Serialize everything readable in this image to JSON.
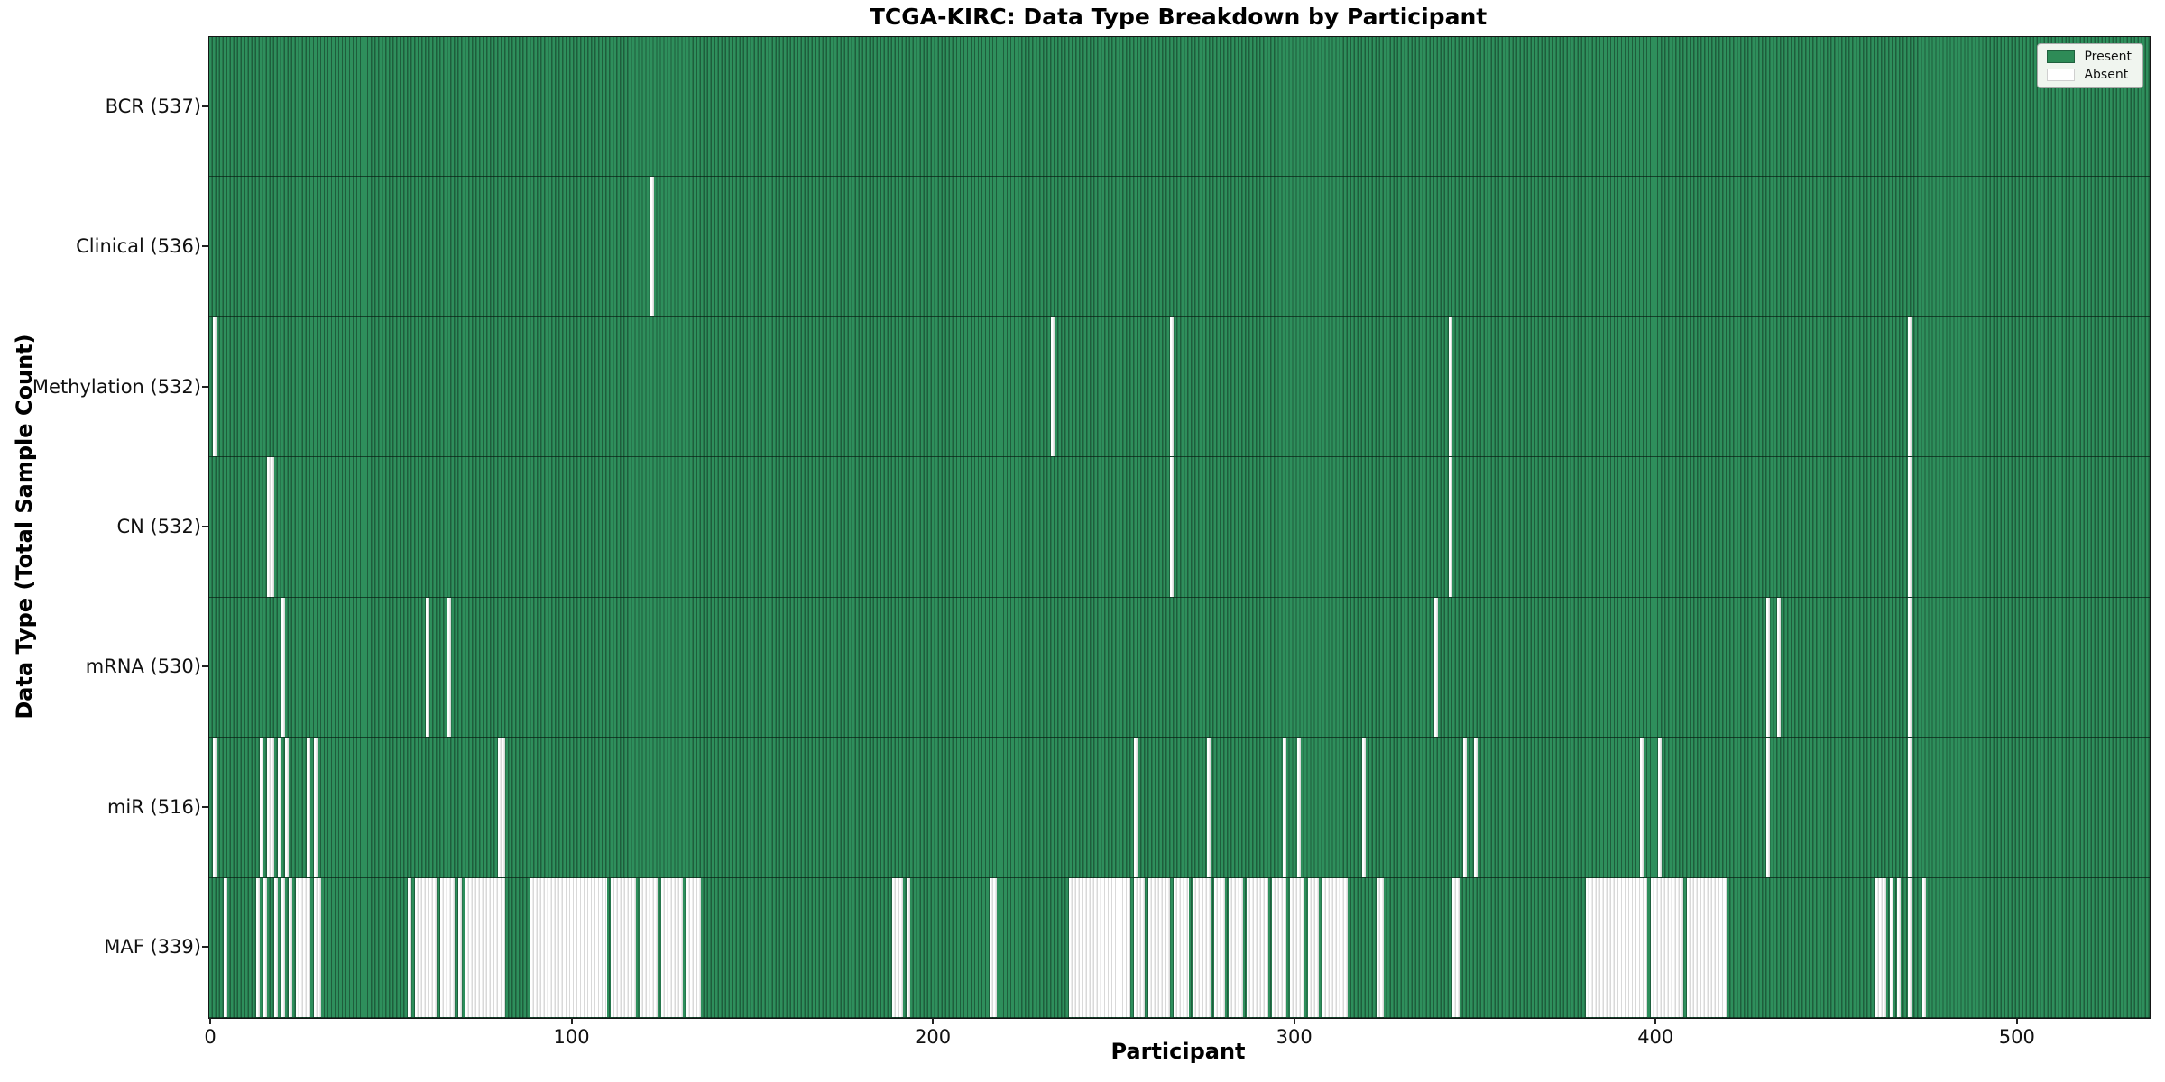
{
  "title": "TCGA-KIRC: Data Type Breakdown by Participant",
  "xlabel": "Participant",
  "ylabel": "Data Type (Total Sample Count)",
  "x_ticks": [
    0,
    100,
    200,
    300,
    400,
    500
  ],
  "legend": {
    "present_label": "Present",
    "absent_label": "Absent"
  },
  "colors": {
    "present": "#2e8b57",
    "present_edge": "#1e5e3c",
    "absent": "#ffffff",
    "absent_edge": "#d9d9d9",
    "spine": "#151515"
  },
  "chart_data": {
    "type": "heatmap",
    "n_participants": 537,
    "x_range": [
      -0.5,
      536.5
    ],
    "legend_position": "upper right",
    "rows": [
      {
        "name": "BCR",
        "label": "BCR (537)",
        "total": 537,
        "absent": []
      },
      {
        "name": "Clinical",
        "label": "Clinical (536)",
        "total": 536,
        "absent": [
          [
            122,
            122
          ]
        ]
      },
      {
        "name": "Methylation",
        "label": "Methylation (532)",
        "total": 532,
        "absent": [
          [
            1,
            1
          ],
          [
            233,
            233
          ],
          [
            266,
            266
          ],
          [
            343,
            343
          ],
          [
            470,
            470
          ]
        ]
      },
      {
        "name": "CN",
        "label": "CN (532)",
        "total": 532,
        "absent": [
          [
            16,
            17
          ],
          [
            266,
            266
          ],
          [
            343,
            343
          ],
          [
            470,
            470
          ]
        ]
      },
      {
        "name": "mRNA",
        "label": "mRNA (530)",
        "total": 530,
        "absent": [
          [
            20,
            20
          ],
          [
            60,
            60
          ],
          [
            66,
            66
          ],
          [
            339,
            339
          ],
          [
            431,
            431
          ],
          [
            434,
            434
          ],
          [
            470,
            470
          ]
        ]
      },
      {
        "name": "miR",
        "label": "miR (516)",
        "total": 516,
        "absent": [
          [
            1,
            1
          ],
          [
            14,
            14
          ],
          [
            16,
            17
          ],
          [
            19,
            19
          ],
          [
            21,
            21
          ],
          [
            27,
            27
          ],
          [
            29,
            29
          ],
          [
            80,
            81
          ],
          [
            256,
            256
          ],
          [
            276,
            276
          ],
          [
            297,
            297
          ],
          [
            301,
            301
          ],
          [
            319,
            319
          ],
          [
            347,
            347
          ],
          [
            350,
            350
          ],
          [
            396,
            396
          ],
          [
            401,
            401
          ],
          [
            431,
            431
          ],
          [
            470,
            470
          ]
        ]
      },
      {
        "name": "MAF",
        "label": "MAF (339)",
        "total": 339,
        "absent": [
          [
            4,
            4
          ],
          [
            13,
            13
          ],
          [
            15,
            15
          ],
          [
            18,
            18
          ],
          [
            20,
            20
          ],
          [
            22,
            22
          ],
          [
            24,
            27
          ],
          [
            29,
            30
          ],
          [
            55,
            55
          ],
          [
            57,
            62
          ],
          [
            64,
            67
          ],
          [
            69,
            69
          ],
          [
            71,
            81
          ],
          [
            89,
            109
          ],
          [
            111,
            117
          ],
          [
            119,
            123
          ],
          [
            125,
            130
          ],
          [
            132,
            135
          ],
          [
            189,
            191
          ],
          [
            193,
            193
          ],
          [
            216,
            217
          ],
          [
            238,
            254
          ],
          [
            256,
            258
          ],
          [
            260,
            265
          ],
          [
            267,
            270
          ],
          [
            272,
            276
          ],
          [
            278,
            280
          ],
          [
            282,
            285
          ],
          [
            287,
            292
          ],
          [
            294,
            297
          ],
          [
            299,
            302
          ],
          [
            304,
            306
          ],
          [
            308,
            314
          ],
          [
            323,
            324
          ],
          [
            344,
            345
          ],
          [
            381,
            397
          ],
          [
            399,
            407
          ],
          [
            409,
            419
          ],
          [
            461,
            463
          ],
          [
            465,
            465
          ],
          [
            467,
            467
          ],
          [
            470,
            470
          ],
          [
            474,
            474
          ]
        ]
      }
    ]
  }
}
